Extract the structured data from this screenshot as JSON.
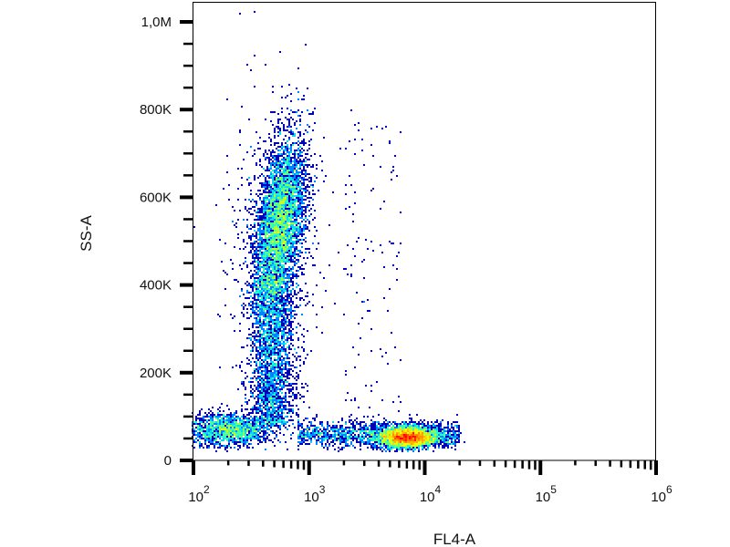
{
  "chart_data": {
    "type": "scatter",
    "subtype": "density-dot-plot",
    "xlabel": "FL4-A",
    "ylabel": "SS-A",
    "x_scale": "log",
    "xlim": [
      100,
      1000000
    ],
    "ylim": [
      0,
      1046000
    ],
    "x_ticks": [
      {
        "value": 100,
        "base": "10",
        "exp": "2"
      },
      {
        "value": 1000,
        "base": "10",
        "exp": "3"
      },
      {
        "value": 10000,
        "base": "10",
        "exp": "4"
      },
      {
        "value": 100000,
        "base": "10",
        "exp": "5"
      },
      {
        "value": 1000000,
        "base": "10",
        "exp": "6"
      }
    ],
    "y_ticks": [
      {
        "value": 0,
        "label": "0"
      },
      {
        "value": 200000,
        "label": "200K"
      },
      {
        "value": 400000,
        "label": "400K"
      },
      {
        "value": 600000,
        "label": "600K"
      },
      {
        "value": 800000,
        "label": "800K"
      },
      {
        "value": 1000000,
        "label": "1,0M"
      }
    ],
    "grid": false,
    "colormap": [
      "#0000b4",
      "#0050ff",
      "#00c8ff",
      "#30ffc0",
      "#a0ff40",
      "#ffff00",
      "#ff9000",
      "#ff0000"
    ],
    "populations": [
      {
        "x_center": 560,
        "x_log_sd": 0.11,
        "y_center": 540000,
        "y_sd": 95000,
        "corr": 0.4,
        "events": 5000
      },
      {
        "x_center": 480,
        "x_log_sd": 0.1,
        "y_range": [
          80000,
          420000
        ],
        "events": 2500
      },
      {
        "x_center": 200,
        "x_log_sd": 0.2,
        "y_center": 70000,
        "y_sd": 18000,
        "events": 1800
      },
      {
        "x_center": 7100,
        "x_log_sd": 0.13,
        "y_center": 52000,
        "y_sd": 12000,
        "events": 3500
      },
      {
        "x_range": [
          800,
          20000
        ],
        "y_center": 60000,
        "y_sd": 15000,
        "events": 1500
      },
      {
        "x_range": [
          2000,
          6300
        ],
        "y_range": [
          50000,
          800000
        ],
        "events": 120
      },
      {
        "x_center": 500,
        "x_log_sd": 0.2,
        "y_center": 450000,
        "y_sd": 200000,
        "events": 600
      }
    ]
  }
}
